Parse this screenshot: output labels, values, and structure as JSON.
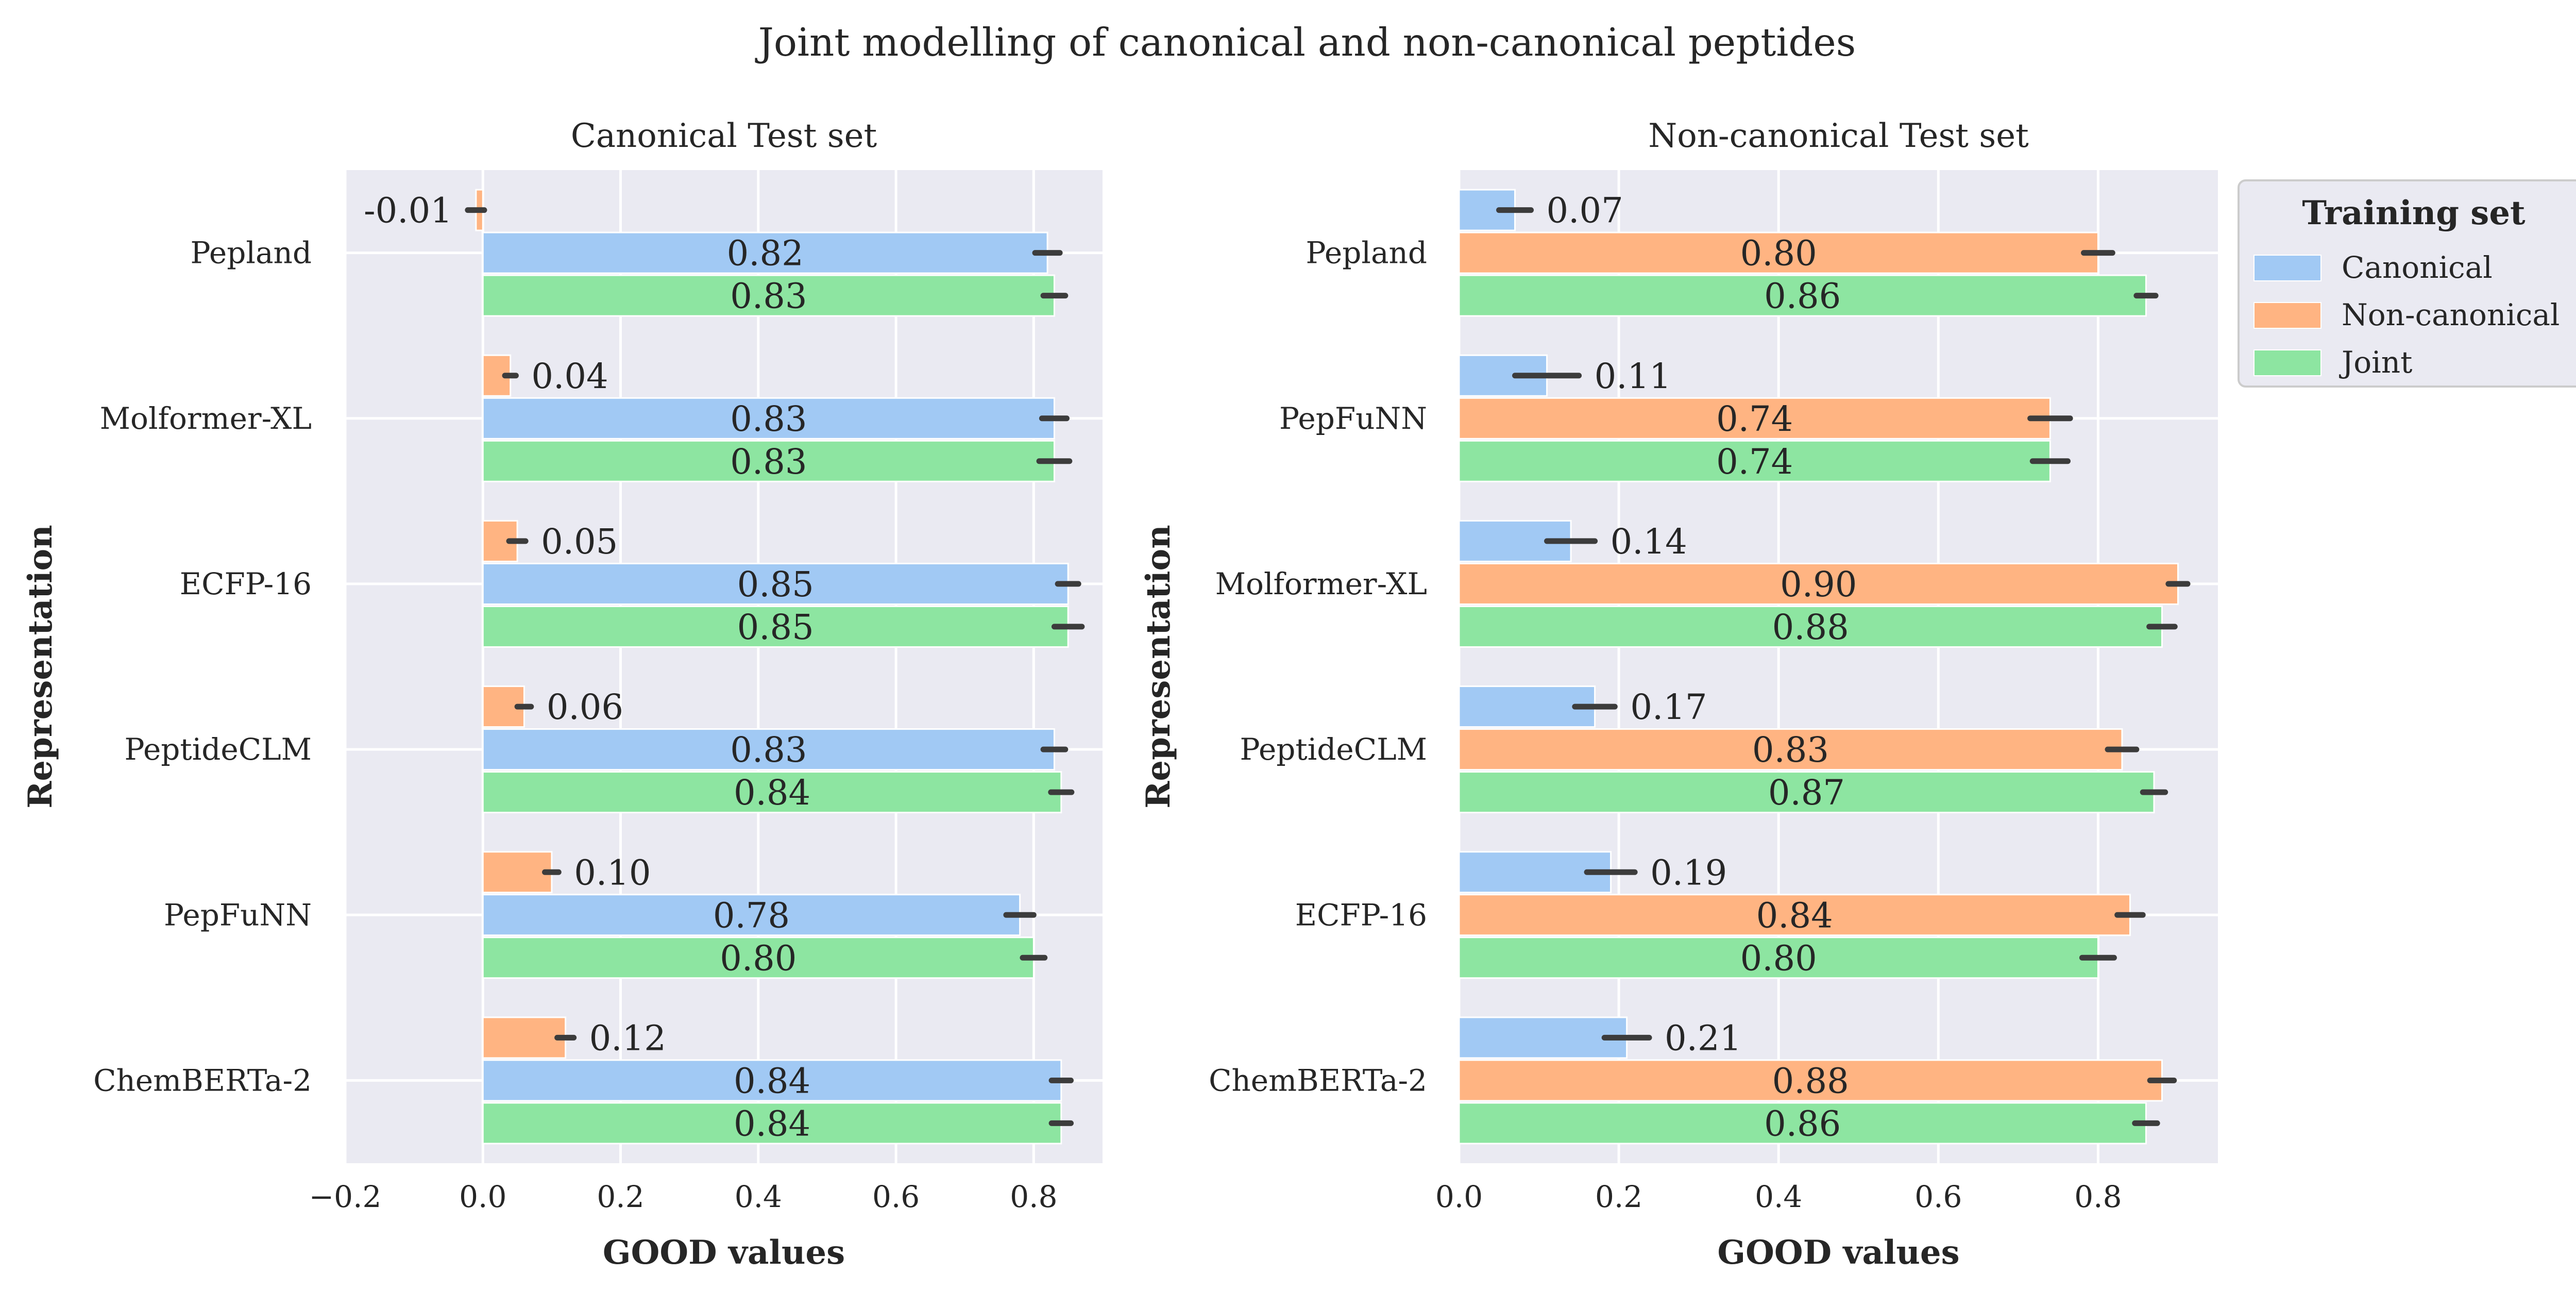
{
  "title": "Joint modelling of canonical and non-canonical peptides",
  "colors": {
    "Canonical": "#a1c9f4",
    "Non-canonical": "#ffb482",
    "Joint": "#8de5a1",
    "panel_bg": "#eaeaf2",
    "error_bar": "#3c3c3c"
  },
  "legend": {
    "title": "Training set",
    "items": [
      "Canonical",
      "Non-canonical",
      "Joint"
    ],
    "placement": "outside upper right"
  },
  "chart_data": [
    {
      "type": "bar",
      "orientation": "horizontal",
      "title": "Canonical Test set",
      "xlabel": "GOOD values",
      "ylabel": "Representation",
      "xlim": [
        -0.2,
        0.9
      ],
      "xticks": [
        -0.2,
        0.0,
        0.2,
        0.4,
        0.6,
        0.8
      ],
      "xtick_labels": [
        "−0.2",
        "0.0",
        "0.2",
        "0.4",
        "0.6",
        "0.8"
      ],
      "grid": true,
      "categories": [
        "Pepland",
        "Molformer-XL",
        "ECFP-16",
        "PeptideCLM",
        "PepFuNN",
        "ChemBERTa-2"
      ],
      "series": [
        {
          "name": "Non-canonical",
          "values": [
            -0.01,
            0.04,
            0.05,
            0.06,
            0.1,
            0.12
          ],
          "labels": [
            "-0.01",
            "0.04",
            "0.05",
            "0.06",
            "0.10",
            "0.12"
          ],
          "err": [
            0.012,
            0.008,
            0.012,
            0.01,
            0.01,
            0.012
          ]
        },
        {
          "name": "Canonical",
          "values": [
            0.82,
            0.83,
            0.85,
            0.83,
            0.78,
            0.84
          ],
          "labels": [
            "0.82",
            "0.83",
            "0.85",
            "0.83",
            "0.78",
            "0.84"
          ],
          "err": [
            0.018,
            0.018,
            0.015,
            0.016,
            0.02,
            0.014
          ]
        },
        {
          "name": "Joint",
          "values": [
            0.83,
            0.83,
            0.85,
            0.84,
            0.8,
            0.84
          ],
          "labels": [
            "0.83",
            "0.83",
            "0.85",
            "0.84",
            "0.80",
            "0.84"
          ],
          "err": [
            0.016,
            0.022,
            0.02,
            0.015,
            0.016,
            0.014
          ]
        }
      ]
    },
    {
      "type": "bar",
      "orientation": "horizontal",
      "title": "Non-canonical Test set",
      "xlabel": "GOOD values",
      "ylabel": "Representation",
      "xlim": [
        0.0,
        0.95
      ],
      "xticks": [
        0.0,
        0.2,
        0.4,
        0.6,
        0.8
      ],
      "xtick_labels": [
        "0.0",
        "0.2",
        "0.4",
        "0.6",
        "0.8"
      ],
      "grid": true,
      "categories": [
        "Pepland",
        "PepFuNN",
        "Molformer-XL",
        "PeptideCLM",
        "ECFP-16",
        "ChemBERTa-2"
      ],
      "series": [
        {
          "name": "Canonical",
          "values": [
            0.07,
            0.11,
            0.14,
            0.17,
            0.19,
            0.21
          ],
          "labels": [
            "0.07",
            "0.11",
            "0.14",
            "0.17",
            "0.19",
            "0.21"
          ],
          "err": [
            0.02,
            0.04,
            0.03,
            0.025,
            0.03,
            0.028
          ]
        },
        {
          "name": "Non-canonical",
          "values": [
            0.8,
            0.74,
            0.9,
            0.83,
            0.84,
            0.88
          ],
          "labels": [
            "0.80",
            "0.74",
            "0.90",
            "0.83",
            "0.84",
            "0.88"
          ],
          "err": [
            0.018,
            0.025,
            0.012,
            0.018,
            0.016,
            0.015
          ]
        },
        {
          "name": "Joint",
          "values": [
            0.86,
            0.74,
            0.88,
            0.87,
            0.8,
            0.86
          ],
          "labels": [
            "0.86",
            "0.74",
            "0.88",
            "0.87",
            "0.80",
            "0.86"
          ],
          "err": [
            0.012,
            0.022,
            0.016,
            0.014,
            0.02,
            0.014
          ]
        }
      ]
    }
  ]
}
